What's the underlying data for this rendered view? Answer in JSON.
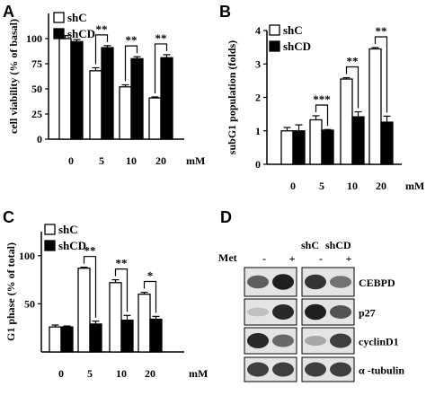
{
  "panel_labels": [
    "A",
    "B",
    "C",
    "D"
  ],
  "chart_data": [
    {
      "id": "A",
      "type": "bar",
      "ylabel": "cell viability (% of basal)",
      "x_unit": "mM",
      "categories": [
        "0",
        "5",
        "10",
        "20"
      ],
      "ylim": [
        0,
        125
      ],
      "yticks": [
        "0",
        "25",
        "50",
        "75",
        "100"
      ],
      "series": [
        {
          "name": "shC",
          "fill": "#ffffff",
          "values": [
            100,
            68,
            52,
            41
          ],
          "errors": [
            3,
            3,
            2,
            1
          ]
        },
        {
          "name": "shCD",
          "fill": "#000000",
          "values": [
            97,
            91,
            80,
            81
          ],
          "errors": [
            2,
            2,
            2,
            3
          ]
        }
      ],
      "significance": [
        {
          "category": 1,
          "label": "**"
        },
        {
          "category": 2,
          "label": "**"
        },
        {
          "category": 3,
          "label": "**"
        }
      ]
    },
    {
      "id": "B",
      "type": "bar",
      "ylabel": "subG1 population (folds)",
      "x_unit": "mM",
      "categories": [
        "0",
        "5",
        "10",
        "20"
      ],
      "ylim": [
        0,
        4
      ],
      "yticks": [
        "0",
        "1",
        "2",
        "3",
        "4"
      ],
      "series": [
        {
          "name": "shC",
          "fill": "#ffffff",
          "values": [
            1.0,
            1.33,
            2.55,
            3.45
          ],
          "errors": [
            0.1,
            0.12,
            0.04,
            0.04
          ]
        },
        {
          "name": "shCD",
          "fill": "#000000",
          "values": [
            1.0,
            1.02,
            1.42,
            1.26
          ],
          "errors": [
            0.18,
            0.02,
            0.15,
            0.18
          ]
        }
      ],
      "significance": [
        {
          "category": 1,
          "label": "***"
        },
        {
          "category": 2,
          "label": "**"
        },
        {
          "category": 3,
          "label": "**"
        }
      ]
    },
    {
      "id": "C",
      "type": "bar",
      "ylabel": "G1 phase (% of total)",
      "x_unit": "mM",
      "categories": [
        "0",
        "5",
        "10",
        "20"
      ],
      "ylim": [
        0,
        125
      ],
      "yticks": [
        "50",
        "100"
      ],
      "series": [
        {
          "name": "shC",
          "fill": "#ffffff",
          "values": [
            26,
            87,
            72,
            60
          ],
          "errors": [
            2,
            1,
            3,
            2
          ]
        },
        {
          "name": "shCD",
          "fill": "#000000",
          "values": [
            26,
            29,
            33,
            34
          ],
          "errors": [
            1,
            3,
            5,
            3
          ]
        }
      ],
      "significance": [
        {
          "category": 1,
          "label": "**"
        },
        {
          "category": 2,
          "label": "**"
        },
        {
          "category": 3,
          "label": "*"
        }
      ]
    }
  ],
  "western_blot": {
    "id": "D",
    "treatment_label": "Met",
    "treatments": [
      "-",
      "+",
      "-",
      "+"
    ],
    "groups": [
      "shC",
      "shCD"
    ],
    "proteins": [
      "CEBPD",
      "p27",
      "cyclinD1",
      "α -tubulin"
    ],
    "band_intensity": [
      [
        0.65,
        0.95,
        0.85,
        0.55
      ],
      [
        0.18,
        0.9,
        0.95,
        0.7
      ],
      [
        0.9,
        0.6,
        0.3,
        0.8
      ],
      [
        0.8,
        0.8,
        0.8,
        0.8
      ]
    ]
  }
}
